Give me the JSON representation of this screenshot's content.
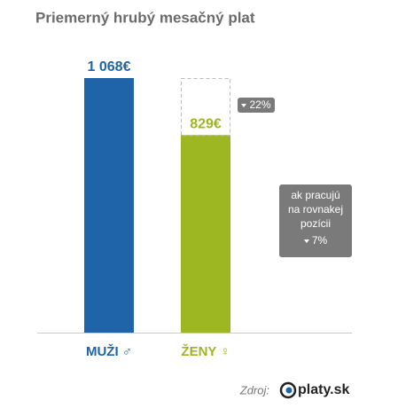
{
  "chart_data": {
    "type": "bar",
    "title": "Priemerný hrubý mesačný plat",
    "categories": [
      "MUŽI ♂",
      "ŽENY ♀"
    ],
    "values": [
      1068,
      829
    ],
    "value_labels": [
      "1 068€",
      "829€"
    ],
    "colors": [
      "#1f63a8",
      "#9db722"
    ],
    "annotations": {
      "difference": "22%",
      "equal_position_note": "ak pracujú na rovnakej pozícii",
      "equal_position_difference": "7%"
    },
    "source_label": "Zdroj:",
    "source": "platy.sk"
  }
}
